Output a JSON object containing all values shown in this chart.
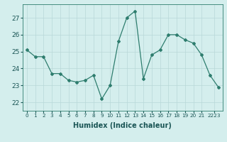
{
  "x": [
    0,
    1,
    2,
    3,
    4,
    5,
    6,
    7,
    8,
    9,
    10,
    11,
    12,
    13,
    14,
    15,
    16,
    17,
    18,
    19,
    20,
    21,
    22,
    23
  ],
  "y": [
    25.1,
    24.7,
    24.7,
    23.7,
    23.7,
    23.3,
    23.2,
    23.3,
    23.6,
    22.2,
    23.0,
    25.6,
    27.0,
    27.4,
    23.4,
    24.8,
    25.1,
    26.0,
    26.0,
    25.7,
    25.5,
    24.8,
    23.6,
    22.9
  ],
  "line_color": "#2e7d6e",
  "marker": "D",
  "marker_size": 2,
  "bg_color": "#d4eeed",
  "grid_color": "#b8d8d8",
  "xlabel": "Humidex (Indice chaleur)",
  "ylim": [
    21.5,
    27.8
  ],
  "xlim": [
    -0.5,
    23.5
  ],
  "yticks": [
    22,
    23,
    24,
    25,
    26,
    27
  ],
  "xtick_labels": [
    "0",
    "1",
    "2",
    "3",
    "4",
    "5",
    "6",
    "7",
    "8",
    "9",
    "10",
    "11",
    "12",
    "13",
    "14",
    "15",
    "16",
    "17",
    "18",
    "19",
    "20",
    "21",
    "2223"
  ],
  "xtick_positions": [
    0,
    1,
    2,
    3,
    4,
    5,
    6,
    7,
    8,
    9,
    10,
    11,
    12,
    13,
    14,
    15,
    16,
    17,
    18,
    19,
    20,
    21,
    22.5
  ]
}
